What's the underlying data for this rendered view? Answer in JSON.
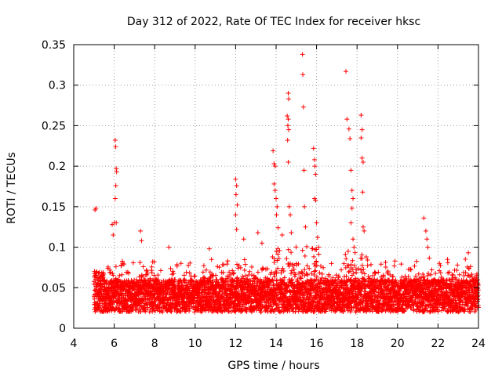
{
  "chart_data": {
    "type": "scatter",
    "title": "Day 312 of 2022, Rate Of TEC Index for receiver hksc",
    "xlabel": "GPS time / hours",
    "ylabel": "ROTI / TECUs",
    "xlim": [
      4,
      24
    ],
    "ylim": [
      0,
      0.35
    ],
    "xticks": [
      4,
      6,
      8,
      10,
      12,
      14,
      16,
      18,
      20,
      22,
      24
    ],
    "yticks": [
      0,
      0.05,
      0.1,
      0.15,
      0.2,
      0.25,
      0.3,
      0.35
    ],
    "xtick_labels": [
      "4",
      "6",
      "8",
      "10",
      "12",
      "14",
      "16",
      "18",
      "20",
      "22",
      "24"
    ],
    "ytick_labels": [
      "0",
      "0.05",
      "0.1",
      "0.15",
      "0.2",
      "0.25",
      "0.3",
      "0.35"
    ],
    "grid": true,
    "marker": "+",
    "color": "#ff0000",
    "series": [
      {
        "name": "ROTI",
        "points": [
          [
            5.05,
            0.146
          ],
          [
            5.1,
            0.148
          ],
          [
            5.9,
            0.128
          ],
          [
            5.95,
            0.115
          ],
          [
            6.0,
            0.13
          ],
          [
            6.05,
            0.232
          ],
          [
            6.07,
            0.224
          ],
          [
            6.1,
            0.197
          ],
          [
            6.12,
            0.193
          ],
          [
            6.08,
            0.176
          ],
          [
            6.05,
            0.16
          ],
          [
            6.1,
            0.13
          ],
          [
            7.3,
            0.12
          ],
          [
            7.35,
            0.108
          ],
          [
            8.7,
            0.1
          ],
          [
            10.7,
            0.098
          ],
          [
            12.0,
            0.184
          ],
          [
            12.05,
            0.176
          ],
          [
            12.02,
            0.165
          ],
          [
            12.08,
            0.152
          ],
          [
            12.0,
            0.14
          ],
          [
            12.05,
            0.122
          ],
          [
            12.4,
            0.11
          ],
          [
            13.1,
            0.118
          ],
          [
            13.3,
            0.105
          ],
          [
            13.85,
            0.219
          ],
          [
            13.9,
            0.203
          ],
          [
            13.95,
            0.2
          ],
          [
            13.9,
            0.178
          ],
          [
            13.95,
            0.17
          ],
          [
            14.0,
            0.16
          ],
          [
            14.05,
            0.15
          ],
          [
            14.02,
            0.14
          ],
          [
            14.1,
            0.124
          ],
          [
            14.3,
            0.115
          ],
          [
            14.6,
            0.29
          ],
          [
            14.62,
            0.283
          ],
          [
            14.55,
            0.262
          ],
          [
            14.6,
            0.258
          ],
          [
            14.58,
            0.25
          ],
          [
            14.62,
            0.245
          ],
          [
            14.57,
            0.232
          ],
          [
            14.6,
            0.205
          ],
          [
            14.65,
            0.15
          ],
          [
            14.7,
            0.14
          ],
          [
            14.75,
            0.118
          ],
          [
            15.3,
            0.338
          ],
          [
            15.32,
            0.313
          ],
          [
            15.35,
            0.273
          ],
          [
            15.38,
            0.195
          ],
          [
            15.4,
            0.15
          ],
          [
            15.45,
            0.125
          ],
          [
            15.85,
            0.222
          ],
          [
            15.9,
            0.208
          ],
          [
            15.92,
            0.2
          ],
          [
            15.95,
            0.19
          ],
          [
            15.9,
            0.16
          ],
          [
            15.95,
            0.158
          ],
          [
            16.0,
            0.13
          ],
          [
            16.05,
            0.112
          ],
          [
            16.1,
            0.1
          ],
          [
            17.45,
            0.317
          ],
          [
            17.5,
            0.258
          ],
          [
            17.6,
            0.246
          ],
          [
            17.65,
            0.234
          ],
          [
            17.7,
            0.195
          ],
          [
            17.75,
            0.17
          ],
          [
            17.8,
            0.16
          ],
          [
            17.75,
            0.148
          ],
          [
            17.7,
            0.13
          ],
          [
            17.8,
            0.11
          ],
          [
            17.85,
            0.1
          ],
          [
            18.2,
            0.263
          ],
          [
            18.25,
            0.245
          ],
          [
            18.2,
            0.235
          ],
          [
            18.25,
            0.21
          ],
          [
            18.3,
            0.205
          ],
          [
            18.28,
            0.168
          ],
          [
            18.3,
            0.125
          ],
          [
            18.35,
            0.12
          ],
          [
            21.3,
            0.136
          ],
          [
            21.4,
            0.12
          ],
          [
            21.45,
            0.11
          ],
          [
            21.5,
            0.1
          ],
          [
            23.5,
            0.093
          ]
        ]
      }
    ]
  }
}
